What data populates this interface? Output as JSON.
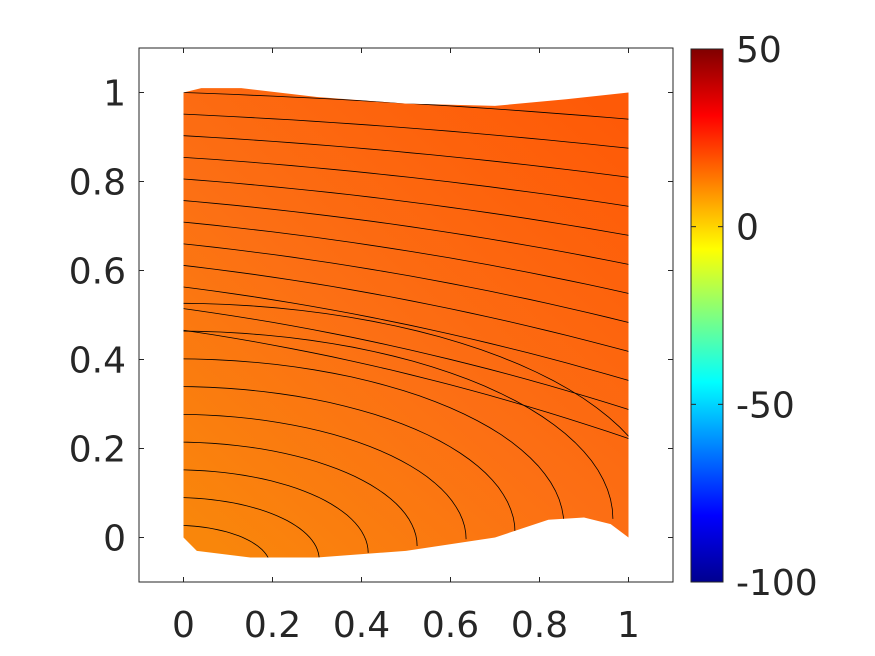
{
  "chart_data": {
    "type": "heatmap",
    "title": "",
    "xlabel": "",
    "ylabel": "",
    "xlim": [
      -0.1,
      1.1
    ],
    "ylim": [
      -0.1,
      1.1
    ],
    "xticks": [
      0,
      0.2,
      0.4,
      0.6,
      0.8,
      1
    ],
    "xtick_labels": [
      "0",
      "0.2",
      "0.4",
      "0.6",
      "0.8",
      "1"
    ],
    "yticks": [
      0,
      0.2,
      0.4,
      0.6,
      0.8,
      1
    ],
    "ytick_labels": [
      "0",
      "0.2",
      "0.4",
      "0.6",
      "0.8",
      "1"
    ],
    "grid": false,
    "colormap": "jet",
    "colorbar": {
      "range": [
        -100,
        50
      ],
      "ticks": [
        50,
        0,
        -50,
        -100
      ],
      "tick_labels": [
        "50",
        "0",
        "-50",
        "-100"
      ]
    },
    "field_range": [
      12,
      26
    ],
    "domain_top": [
      [
        0,
        1.0
      ],
      [
        0.04,
        1.01
      ],
      [
        0.13,
        1.01
      ],
      [
        0.3,
        0.99
      ],
      [
        0.5,
        0.975
      ],
      [
        0.7,
        0.97
      ],
      [
        0.86,
        0.985
      ],
      [
        1,
        1.0
      ]
    ],
    "domain_bottom": [
      [
        0,
        0.0
      ],
      [
        0.03,
        -0.03
      ],
      [
        0.15,
        -0.045
      ],
      [
        0.3,
        -0.045
      ],
      [
        0.5,
        -0.03
      ],
      [
        0.7,
        0.0
      ],
      [
        0.82,
        0.04
      ],
      [
        0.9,
        0.045
      ],
      [
        0.96,
        0.03
      ],
      [
        1,
        0.0
      ]
    ]
  },
  "colors": {
    "field_top_right": "#fe5a07",
    "field_mid": "#fc6f14",
    "field_bottom_left": "#f9860b",
    "contour_line": "#000000",
    "axis": "#262626"
  }
}
